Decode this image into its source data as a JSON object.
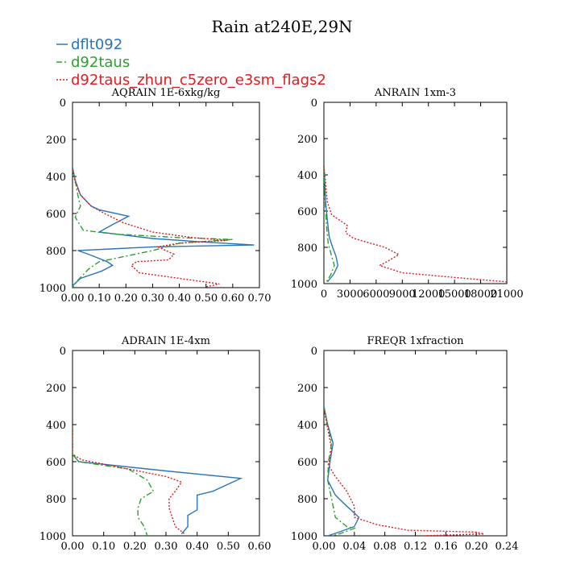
{
  "title": "Rain at240E,29N",
  "legend": [
    {
      "name": "dflt092",
      "color": "#2a75b8",
      "dash": "solid"
    },
    {
      "name": "d92taus",
      "color": "#2ca02c",
      "dash": "dashdot"
    },
    {
      "name": "d92taus_zhun_c5zero_e3sm_flags2",
      "color": "#e41a1c",
      "dash": "dotted"
    }
  ],
  "chart_data": [
    {
      "type": "line",
      "title": "AQRAIN  1E-6xkg/kg",
      "xlim": [
        0,
        0.7
      ],
      "xticks": [
        0,
        0.1,
        0.2,
        0.3,
        0.4,
        0.5,
        0.6,
        0.7
      ],
      "xtick_labels": [
        "0.00",
        "0.10",
        "0.20",
        "0.30",
        "0.40",
        "0.50",
        "0.60",
        "0.70"
      ],
      "ylim": [
        1000,
        0
      ],
      "yticks": [
        0,
        200,
        400,
        600,
        800,
        1000
      ],
      "ytick_labels": [
        "0",
        "200",
        "400",
        "600",
        "800",
        "1000"
      ],
      "series": [
        {
          "name": "dflt092",
          "points": [
            [
              0,
              350
            ],
            [
              0.01,
              420
            ],
            [
              0.03,
              500
            ],
            [
              0.07,
              560
            ],
            [
              0.1,
              580
            ],
            [
              0.21,
              615
            ],
            [
              0.15,
              660
            ],
            [
              0.1,
              700
            ],
            [
              0.3,
              735
            ],
            [
              0.5,
              755
            ],
            [
              0.68,
              770
            ],
            [
              0.3,
              780
            ],
            [
              0.02,
              800
            ],
            [
              0.06,
              820
            ],
            [
              0.13,
              860
            ],
            [
              0.15,
              880
            ],
            [
              0.11,
              910
            ],
            [
              0.03,
              950
            ],
            [
              0,
              990
            ]
          ]
        },
        {
          "name": "d92taus",
          "points": [
            [
              0,
              360
            ],
            [
              0.01,
              420
            ],
            [
              0.02,
              500
            ],
            [
              0.03,
              560
            ],
            [
              0.01,
              620
            ],
            [
              0.04,
              690
            ],
            [
              0.15,
              710
            ],
            [
              0.4,
              730
            ],
            [
              0.6,
              740
            ],
            [
              0.4,
              760
            ],
            [
              0.3,
              800
            ],
            [
              0.1,
              860
            ],
            [
              0.06,
              900
            ],
            [
              0.02,
              960
            ],
            [
              0,
              1000
            ]
          ]
        },
        {
          "name": "d92taus_zhun_c5zero_e3sm_flags2",
          "points": [
            [
              0,
              360
            ],
            [
              0.01,
              430
            ],
            [
              0.03,
              500
            ],
            [
              0.07,
              560
            ],
            [
              0.12,
              600
            ],
            [
              0.19,
              650
            ],
            [
              0.3,
              700
            ],
            [
              0.45,
              730
            ],
            [
              0.58,
              745
            ],
            [
              0.4,
              760
            ],
            [
              0.32,
              780
            ],
            [
              0.38,
              820
            ],
            [
              0.36,
              850
            ],
            [
              0.24,
              860
            ],
            [
              0.22,
              880
            ],
            [
              0.25,
              920
            ],
            [
              0.4,
              950
            ],
            [
              0.55,
              980
            ],
            [
              0.5,
              995
            ]
          ]
        }
      ]
    },
    {
      "type": "line",
      "title": "ANRAIN  1xm-3",
      "xlim": [
        0,
        21000
      ],
      "xticks": [
        0,
        3000,
        6000,
        9000,
        12000,
        15000,
        18000,
        21000
      ],
      "xtick_labels": [
        "0",
        "3000",
        "6000",
        "9000",
        "12000",
        "15000",
        "18000",
        "21000"
      ],
      "ylim": [
        1000,
        0
      ],
      "yticks": [
        0,
        200,
        400,
        600,
        800,
        1000
      ],
      "ytick_labels": [
        "0",
        "200",
        "400",
        "600",
        "800",
        "1000"
      ],
      "series": [
        {
          "name": "dflt092",
          "points": [
            [
              0,
              340
            ],
            [
              100,
              450
            ],
            [
              200,
              550
            ],
            [
              400,
              650
            ],
            [
              600,
              740
            ],
            [
              1000,
              800
            ],
            [
              1400,
              850
            ],
            [
              1600,
              900
            ],
            [
              1100,
              950
            ],
            [
              400,
              990
            ]
          ]
        },
        {
          "name": "d92taus",
          "points": [
            [
              0,
              350
            ],
            [
              100,
              500
            ],
            [
              200,
              600
            ],
            [
              300,
              680
            ],
            [
              500,
              780
            ],
            [
              900,
              850
            ],
            [
              1200,
              900
            ],
            [
              800,
              950
            ],
            [
              300,
              990
            ]
          ]
        },
        {
          "name": "d92taus_zhun_c5zero_e3sm_flags2",
          "points": [
            [
              0,
              350
            ],
            [
              200,
              450
            ],
            [
              400,
              550
            ],
            [
              900,
              620
            ],
            [
              2700,
              680
            ],
            [
              2500,
              720
            ],
            [
              3400,
              750
            ],
            [
              7000,
              800
            ],
            [
              8600,
              840
            ],
            [
              7200,
              880
            ],
            [
              6400,
              900
            ],
            [
              9000,
              940
            ],
            [
              16000,
              970
            ],
            [
              21000,
              990
            ]
          ]
        }
      ]
    },
    {
      "type": "line",
      "title": "ADRAIN  1E-4xm",
      "xlim": [
        0,
        0.6
      ],
      "xticks": [
        0,
        0.1,
        0.2,
        0.3,
        0.4,
        0.5,
        0.6
      ],
      "xtick_labels": [
        "0.00",
        "0.10",
        "0.20",
        "0.30",
        "0.40",
        "0.50",
        "0.60"
      ],
      "ylim": [
        1000,
        0
      ],
      "yticks": [
        0,
        200,
        400,
        600,
        800,
        1000
      ],
      "ytick_labels": [
        "0",
        "200",
        "400",
        "600",
        "800",
        "1000"
      ],
      "series": [
        {
          "name": "dflt092",
          "points": [
            [
              0,
              430
            ],
            [
              0,
              560
            ],
            [
              0.02,
              600
            ],
            [
              0.3,
              650
            ],
            [
              0.54,
              690
            ],
            [
              0.45,
              760
            ],
            [
              0.4,
              780
            ],
            [
              0.4,
              860
            ],
            [
              0.37,
              890
            ],
            [
              0.37,
              950
            ],
            [
              0.35,
              990
            ]
          ]
        },
        {
          "name": "d92taus",
          "points": [
            [
              0,
              430
            ],
            [
              0,
              560
            ],
            [
              0.02,
              600
            ],
            [
              0.18,
              640
            ],
            [
              0.24,
              700
            ],
            [
              0.26,
              760
            ],
            [
              0.22,
              800
            ],
            [
              0.21,
              850
            ],
            [
              0.21,
              900
            ],
            [
              0.23,
              950
            ],
            [
              0.24,
              1000
            ]
          ]
        },
        {
          "name": "d92taus_zhun_c5zero_e3sm_flags2",
          "points": [
            [
              0,
              430
            ],
            [
              0,
              560
            ],
            [
              0.03,
              590
            ],
            [
              0.3,
              680
            ],
            [
              0.35,
              710
            ],
            [
              0.33,
              760
            ],
            [
              0.31,
              800
            ],
            [
              0.31,
              850
            ],
            [
              0.32,
              900
            ],
            [
              0.33,
              950
            ],
            [
              0.36,
              990
            ]
          ]
        }
      ]
    },
    {
      "type": "line",
      "title": "FREQR  1xfraction",
      "xlim": [
        0,
        0.24
      ],
      "xticks": [
        0,
        0.04,
        0.08,
        0.12,
        0.16,
        0.2,
        0.24
      ],
      "xtick_labels": [
        "0.00",
        "0.04",
        "0.08",
        "0.12",
        "0.16",
        "0.20",
        "0.24"
      ],
      "ylim": [
        1000,
        0
      ],
      "yticks": [
        0,
        200,
        400,
        600,
        800,
        1000
      ],
      "ytick_labels": [
        "0",
        "200",
        "400",
        "600",
        "800",
        "1000"
      ],
      "series": [
        {
          "name": "dflt092",
          "points": [
            [
              0,
              300
            ],
            [
              0.005,
              400
            ],
            [
              0.012,
              500
            ],
            [
              0.008,
              600
            ],
            [
              0.005,
              700
            ],
            [
              0.015,
              780
            ],
            [
              0.03,
              840
            ],
            [
              0.046,
              900
            ],
            [
              0.04,
              950
            ],
            [
              0.02,
              980
            ],
            [
              0.005,
              1000
            ]
          ]
        },
        {
          "name": "d92taus",
          "points": [
            [
              0,
              310
            ],
            [
              0.005,
              400
            ],
            [
              0.01,
              500
            ],
            [
              0.006,
              600
            ],
            [
              0.005,
              700
            ],
            [
              0.01,
              800
            ],
            [
              0.015,
              900
            ],
            [
              0.03,
              950
            ],
            [
              0.04,
              960
            ],
            [
              0.02,
              990
            ],
            [
              0.01,
              1000
            ]
          ]
        },
        {
          "name": "d92taus_zhun_c5zero_e3sm_flags2",
          "points": [
            [
              0,
              320
            ],
            [
              0.005,
              420
            ],
            [
              0.01,
              530
            ],
            [
              0.006,
              620
            ],
            [
              0.015,
              680
            ],
            [
              0.03,
              760
            ],
            [
              0.04,
              840
            ],
            [
              0.04,
              900
            ],
            [
              0.07,
              940
            ],
            [
              0.11,
              970
            ],
            [
              0.2,
              980
            ],
            [
              0.21,
              990
            ],
            [
              0.13,
              1000
            ]
          ]
        }
      ]
    }
  ]
}
